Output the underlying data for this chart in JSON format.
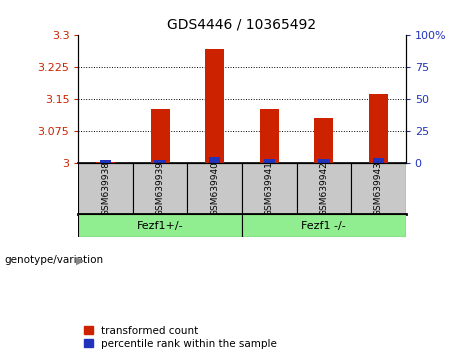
{
  "title": "GDS4446 / 10365492",
  "samples": [
    "GSM639938",
    "GSM639939",
    "GSM639940",
    "GSM639941",
    "GSM639942",
    "GSM639943"
  ],
  "red_values": [
    3.003,
    3.126,
    3.268,
    3.128,
    3.106,
    3.163
  ],
  "blue_values": [
    2.5,
    2.0,
    5.0,
    3.0,
    3.0,
    4.0
  ],
  "ylim_left": [
    3.0,
    3.3
  ],
  "ylim_right": [
    0,
    100
  ],
  "yticks_left": [
    3.0,
    3.075,
    3.15,
    3.225,
    3.3
  ],
  "yticks_right": [
    0,
    25,
    50,
    75,
    100
  ],
  "ytick_labels_left": [
    "3",
    "3.075",
    "3.15",
    "3.225",
    "3.3"
  ],
  "ytick_labels_right": [
    "0",
    "25",
    "50",
    "75",
    "100%"
  ],
  "group1_label": "Fezf1+/-",
  "group2_label": "Fezf1 -/-",
  "group_color": "#90EE90",
  "genotype_label": "genotype/variation",
  "legend_labels": [
    "transformed count",
    "percentile rank within the sample"
  ],
  "bar_color_red": "#CC2200",
  "bar_color_blue": "#2233BB",
  "bar_width": 0.35,
  "sample_box_color": "#C8C8C8",
  "plot_bg": "#FFFFFF",
  "grid_linestyle": ":"
}
